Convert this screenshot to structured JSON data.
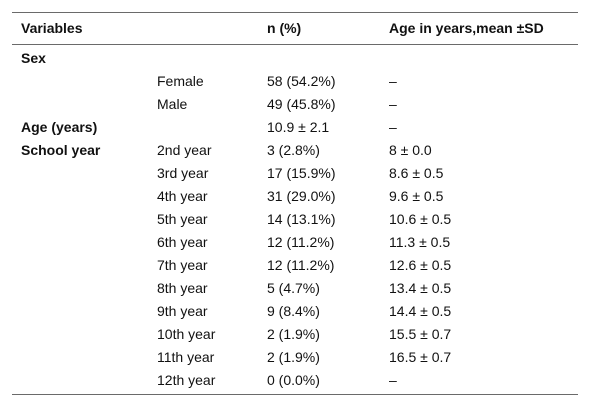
{
  "table": {
    "headers": [
      "Variables",
      "",
      "n (%)",
      "Age in years,mean ±SD"
    ],
    "rows": [
      {
        "group": "Sex",
        "sub": "",
        "n": "",
        "age": ""
      },
      {
        "group": "",
        "sub": "Female",
        "n": "58 (54.2%)",
        "age": "–"
      },
      {
        "group": "",
        "sub": "Male",
        "n": "49 (45.8%)",
        "age": "–"
      },
      {
        "group": "Age (years)",
        "sub": "",
        "n": "10.9 ± 2.1",
        "age": "–"
      },
      {
        "group": "School year",
        "sub": "2nd year",
        "n": "3 (2.8%)",
        "age": "8 ± 0.0"
      },
      {
        "group": "",
        "sub": "3rd year",
        "n": "17 (15.9%)",
        "age": "8.6 ± 0.5"
      },
      {
        "group": "",
        "sub": "4th year",
        "n": "31 (29.0%)",
        "age": "9.6 ± 0.5"
      },
      {
        "group": "",
        "sub": "5th year",
        "n": "14 (13.1%)",
        "age": "10.6 ± 0.5"
      },
      {
        "group": "",
        "sub": "6th year",
        "n": "12 (11.2%)",
        "age": "11.3 ± 0.5"
      },
      {
        "group": "",
        "sub": "7th year",
        "n": "12 (11.2%)",
        "age": "12.6 ± 0.5"
      },
      {
        "group": "",
        "sub": "8th year",
        "n": "5 (4.7%)",
        "age": "13.4 ± 0.5"
      },
      {
        "group": "",
        "sub": "9th year",
        "n": "9 (8.4%)",
        "age": "14.4 ± 0.5"
      },
      {
        "group": "",
        "sub": "10th year",
        "n": "2 (1.9%)",
        "age": "15.5 ± 0.7"
      },
      {
        "group": "",
        "sub": "11th year",
        "n": "2 (1.9%)",
        "age": "16.5 ± 0.7"
      },
      {
        "group": "",
        "sub": "12th year",
        "n": "0 (0.0%)",
        "age": "–"
      }
    ]
  }
}
